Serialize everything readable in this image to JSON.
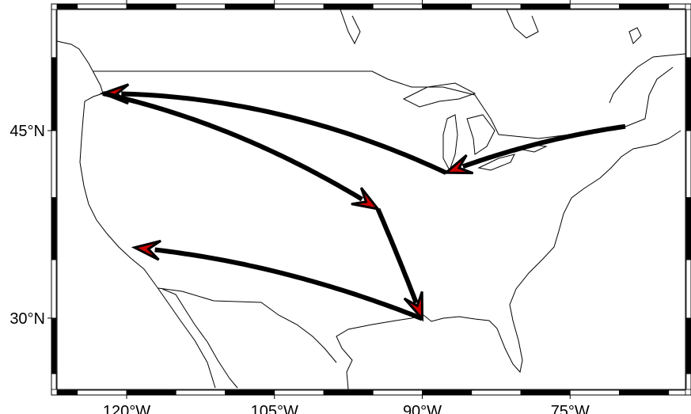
{
  "map": {
    "projection": "mercator",
    "region": {
      "lon": [
        -127,
        -63.4
      ],
      "lat": [
        23.5,
        53
      ]
    },
    "frame_style": "checkerboard",
    "lon_ticks": [
      {
        "value": -120,
        "label": "120°W"
      },
      {
        "value": -105,
        "label": "105°W"
      },
      {
        "value": -90,
        "label": "90°W"
      },
      {
        "value": -75,
        "label": "75°W"
      }
    ],
    "lat_ticks": [
      {
        "value": 45,
        "label": "45°N"
      },
      {
        "value": 30,
        "label": "30°N"
      }
    ],
    "vector_color": "#000000",
    "head_color": "#cc0000",
    "vectors": [
      {
        "from": [
          -69.4,
          45.3
        ],
        "to": [
          -87.6,
          41.9
        ]
      },
      {
        "from": [
          -87.6,
          41.9
        ],
        "to": [
          -122.4,
          47.6
        ]
      },
      {
        "from": [
          -122.4,
          47.6
        ],
        "to": [
          -94.5,
          39.1
        ]
      },
      {
        "from": [
          -94.5,
          39.1
        ],
        "to": [
          -90.0,
          29.95
        ]
      },
      {
        "from": [
          -90.0,
          29.95
        ],
        "to": [
          -119.2,
          36.0
        ]
      }
    ]
  }
}
